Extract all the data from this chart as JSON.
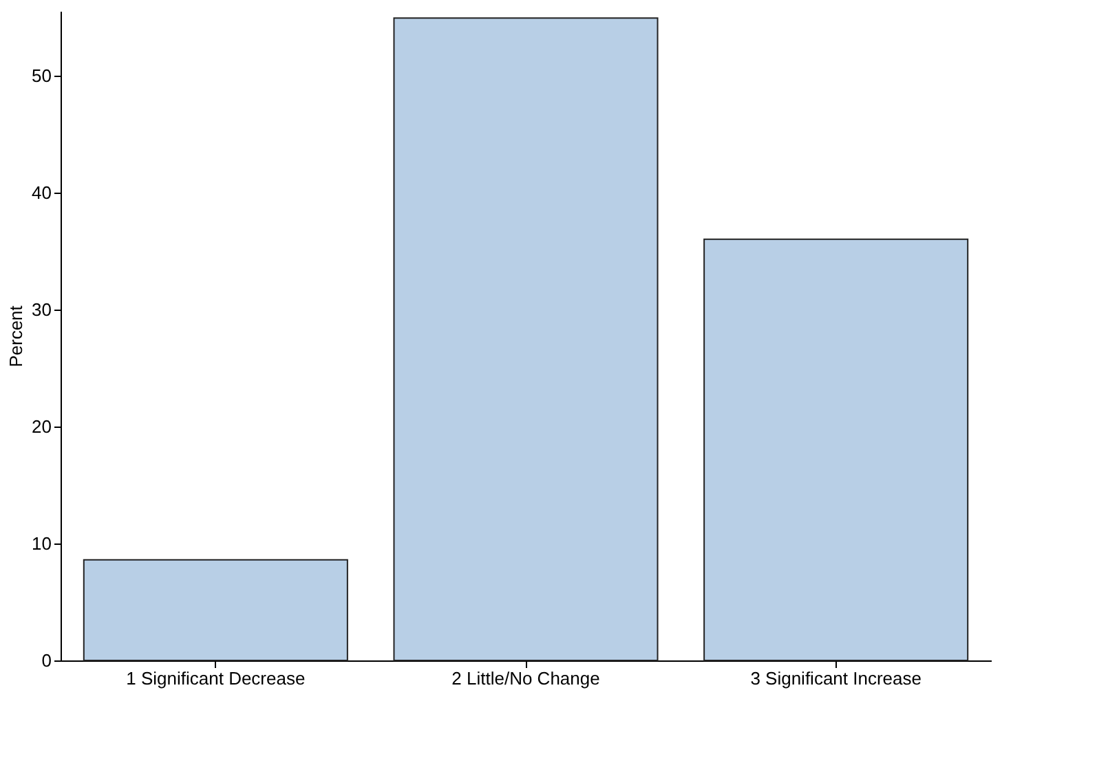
{
  "chart_data": {
    "type": "bar",
    "ylabel": "Percent",
    "categories": [
      "1 Significant Decrease",
      "2 Little/No Change",
      "3 Significant Increase"
    ],
    "values": [
      8.6,
      54.9,
      36.0
    ],
    "color": "#b8cfe6",
    "ylim": [
      0,
      55.5
    ],
    "yticks": [
      0,
      10,
      20,
      30,
      40,
      50
    ],
    "grid": false
  }
}
